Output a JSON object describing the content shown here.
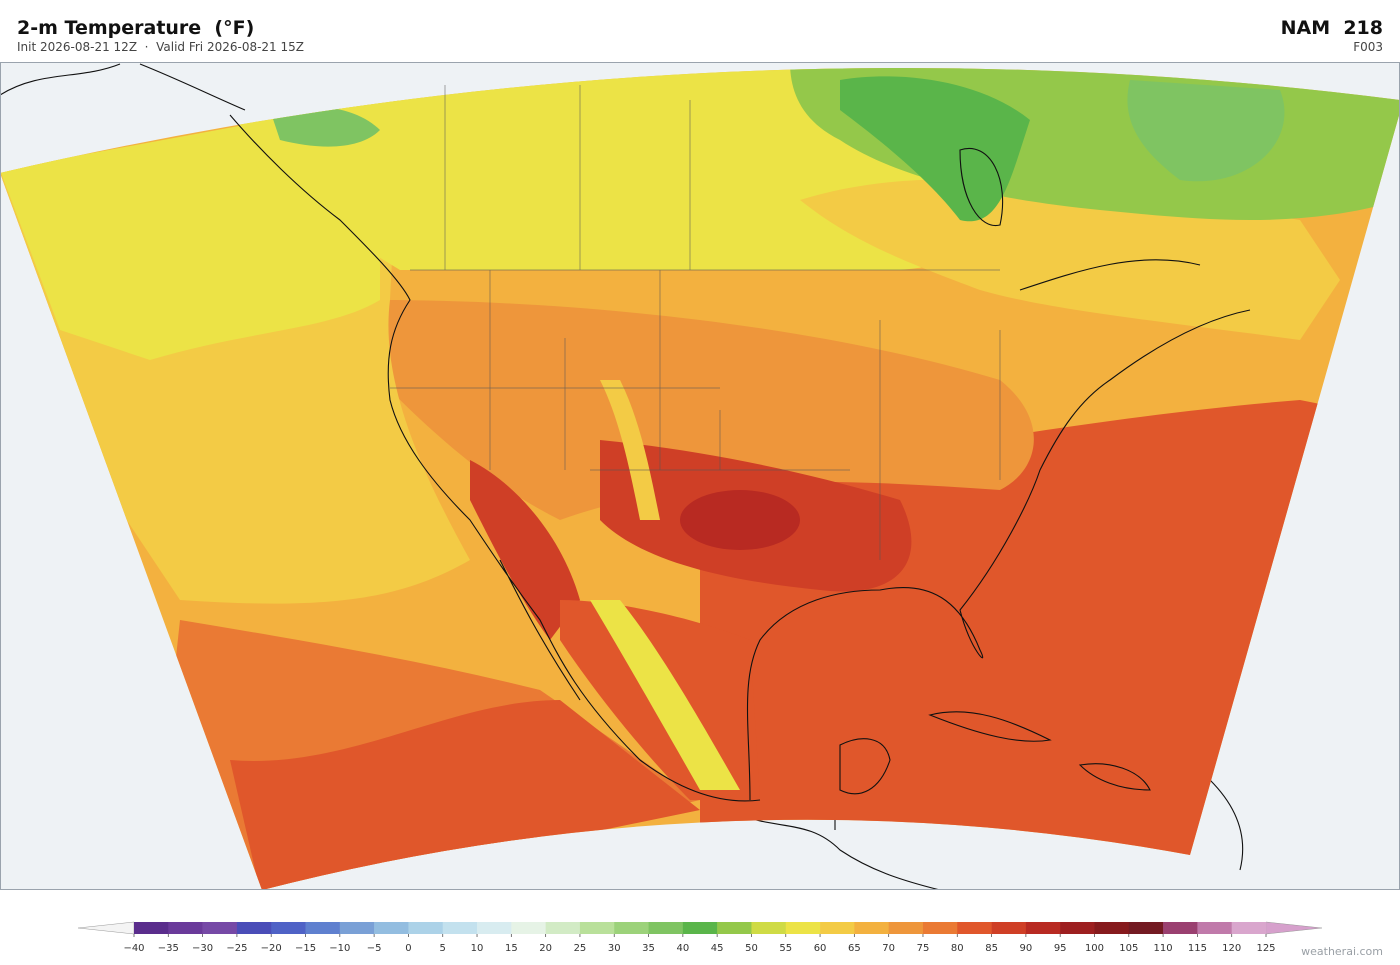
{
  "header": {
    "title": "2-m Temperature  (°F)",
    "subtitle": "Init 2026-08-21 12Z  ·  Valid Fri 2026-08-21 15Z",
    "model": "NAM  218",
    "forecast_hour": "F003"
  },
  "colorbar": {
    "ticks": [
      {
        "value": -40,
        "label": "−40"
      },
      {
        "value": -35,
        "label": "−35"
      },
      {
        "value": -30,
        "label": "−30"
      },
      {
        "value": -25,
        "label": "−25"
      },
      {
        "value": -20,
        "label": "−20"
      },
      {
        "value": -15,
        "label": "−15"
      },
      {
        "value": -10,
        "label": "−10"
      },
      {
        "value": -5,
        "label": "−5"
      },
      0,
      5,
      10,
      15,
      20,
      25,
      30,
      35,
      40,
      45,
      50,
      55,
      60,
      65,
      70,
      75,
      80,
      85,
      90,
      95,
      100,
      105,
      110,
      115,
      120,
      125
    ],
    "colors": [
      "#5a2d8c",
      "#6a3a9a",
      "#7649a6",
      "#4a4db8",
      "#4f62c6",
      "#5f80cf",
      "#7aa0d6",
      "#93bde0",
      "#acd2e8",
      "#c3e1ee",
      "#d8ecf0",
      "#e6f3e6",
      "#d2ebc5",
      "#b9e09a",
      "#9cd27a",
      "#7fc462",
      "#5ab54a",
      "#94c84a",
      "#cfdb45",
      "#ece346",
      "#f3cb45",
      "#f3b13f",
      "#ee963b",
      "#ea7a34",
      "#e0572b",
      "#cf3f26",
      "#b82a22",
      "#9d1f20",
      "#861a1d",
      "#731a22",
      "#9a4070",
      "#c07aaa",
      "#d9a6cd"
    ],
    "under_color": "#f4f4f4",
    "over_color": "#d6a0cc"
  },
  "footer": {
    "credit": "weatherai.com"
  }
}
